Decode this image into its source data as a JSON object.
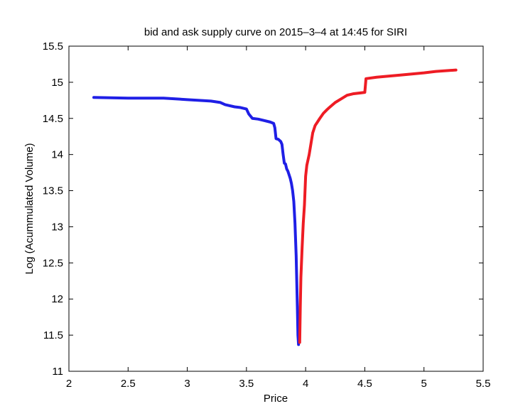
{
  "chart_data": {
    "type": "line",
    "title": "bid and ask supply curve on 2015–3–4 at 14:45 for SIRI",
    "xlabel": "Price",
    "ylabel": "Log (Acummulated Volume)",
    "xlim": [
      2,
      5.5
    ],
    "ylim": [
      11,
      15.5
    ],
    "xticks": [
      "2",
      "2.5",
      "3",
      "3.5",
      "4",
      "4.5",
      "5",
      "5.5"
    ],
    "yticks": [
      "11",
      "11.5",
      "12",
      "12.5",
      "13",
      "13.5",
      "14",
      "14.5",
      "15",
      "15.5"
    ],
    "grid": false,
    "series": [
      {
        "color": "#1f1fe6",
        "x": [
          2.21,
          2.5,
          2.8,
          3.0,
          3.1,
          3.2,
          3.28,
          3.32,
          3.4,
          3.45,
          3.5,
          3.52,
          3.55,
          3.6,
          3.65,
          3.7,
          3.73,
          3.74,
          3.75,
          3.77,
          3.79,
          3.8,
          3.81,
          3.82,
          3.83,
          3.84,
          3.85,
          3.86,
          3.87,
          3.88,
          3.89,
          3.9,
          3.91,
          3.92,
          3.93,
          3.935,
          3.94
        ],
        "values": [
          14.79,
          14.78,
          14.78,
          14.76,
          14.75,
          14.74,
          14.72,
          14.69,
          14.66,
          14.65,
          14.63,
          14.56,
          14.5,
          14.49,
          14.47,
          14.45,
          14.43,
          14.37,
          14.22,
          14.21,
          14.18,
          14.14,
          14.0,
          13.88,
          13.87,
          13.8,
          13.77,
          13.72,
          13.67,
          13.6,
          13.5,
          13.35,
          13.05,
          12.6,
          11.9,
          11.5,
          11.37
        ]
      },
      {
        "color": "#ee1c24",
        "x": [
          3.95,
          3.955,
          3.96,
          3.97,
          3.98,
          3.99,
          4.0,
          4.01,
          4.03,
          4.05,
          4.06,
          4.08,
          4.1,
          4.12,
          4.15,
          4.18,
          4.2,
          4.25,
          4.3,
          4.35,
          4.4,
          4.5,
          4.51,
          4.6,
          4.8,
          5.0,
          5.1,
          5.27
        ],
        "values": [
          11.4,
          11.9,
          12.3,
          12.7,
          13.05,
          13.3,
          13.7,
          13.85,
          14.0,
          14.2,
          14.3,
          14.4,
          14.45,
          14.5,
          14.57,
          14.62,
          14.65,
          14.72,
          14.77,
          14.82,
          14.84,
          14.86,
          15.05,
          15.07,
          15.1,
          15.13,
          15.15,
          15.17
        ]
      }
    ]
  }
}
